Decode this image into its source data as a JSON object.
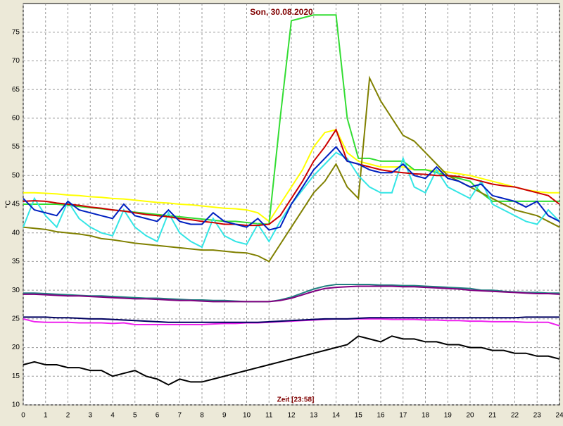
{
  "chart_data": {
    "type": "line",
    "title": "Son, 30.08.2020",
    "xlabel": "Zeit [23:58]",
    "ylabel": "°C",
    "x": [
      0,
      0.5,
      1,
      1.5,
      2,
      2.5,
      3,
      3.5,
      4,
      4.5,
      5,
      5.5,
      6,
      6.5,
      7,
      7.5,
      8,
      8.5,
      9,
      9.5,
      10,
      10.5,
      11,
      11.5,
      12,
      12.5,
      13,
      13.5,
      14,
      14.5,
      15,
      15.5,
      16,
      16.5,
      17,
      17.5,
      18,
      18.5,
      19,
      19.5,
      20,
      20.5,
      21,
      21.5,
      22,
      22.5,
      23,
      23.5,
      24
    ],
    "xlim": [
      0,
      24
    ],
    "xticks": [
      0,
      1,
      2,
      3,
      4,
      5,
      6,
      7,
      8,
      9,
      10,
      11,
      12,
      13,
      14,
      15,
      16,
      17,
      18,
      19,
      20,
      21,
      22,
      23,
      24
    ],
    "ylim": [
      10,
      80
    ],
    "yticks": [
      10,
      15,
      20,
      25,
      30,
      35,
      40,
      45,
      50,
      55,
      60,
      65,
      70,
      75
    ],
    "grid": true,
    "series": [
      {
        "color": "#ffff00",
        "values": [
          47,
          47,
          46.9,
          46.8,
          46.6,
          46.5,
          46.3,
          46.2,
          46,
          45.9,
          45.7,
          45.5,
          45.3,
          45.2,
          45,
          44.9,
          44.7,
          44.5,
          44.3,
          44.2,
          44,
          43.5,
          42,
          45,
          48,
          51,
          55,
          57.5,
          58,
          54,
          52.5,
          52,
          51.5,
          51.5,
          51.5,
          51,
          51,
          50.8,
          50.6,
          50.3,
          50,
          49.5,
          49,
          48.5,
          48,
          47.5,
          47.2,
          47,
          47
        ]
      },
      {
        "color": "#33dd33",
        "values": [
          45,
          45,
          45,
          45,
          44.8,
          44.6,
          44.4,
          44.2,
          44,
          43.8,
          43.6,
          43.4,
          43.2,
          43,
          42.8,
          42.6,
          42.4,
          42.2,
          42,
          42,
          41.8,
          41.6,
          41.5,
          60,
          77,
          77.5,
          78,
          78,
          78,
          60,
          53,
          53,
          52.5,
          52.5,
          52.5,
          51,
          51,
          50.5,
          50,
          49.5,
          49,
          47,
          45.5,
          45.5,
          45.5,
          45.5,
          45.5,
          45.5,
          45.5
        ]
      },
      {
        "color": "#808000",
        "values": [
          41,
          40.8,
          40.6,
          40.2,
          40,
          39.8,
          39.5,
          39,
          38.8,
          38.5,
          38.2,
          38,
          37.8,
          37.6,
          37.4,
          37.2,
          37,
          37,
          36.8,
          36.6,
          36.5,
          36,
          35,
          38,
          41,
          44,
          47,
          49,
          52,
          48,
          46,
          67,
          63,
          60,
          57,
          56,
          54,
          52,
          50,
          49,
          48,
          47,
          46,
          45,
          44,
          43.5,
          43,
          42,
          41
        ]
      },
      {
        "color": "#33e5e5",
        "values": [
          41,
          46,
          43,
          41,
          45.5,
          42.5,
          41,
          40,
          39.5,
          44,
          41,
          39.5,
          38.5,
          43.5,
          40,
          38.5,
          37.5,
          42.5,
          39.5,
          38.5,
          38,
          41.5,
          38.5,
          42,
          45,
          47.5,
          50,
          52,
          54,
          53,
          50,
          48,
          47,
          47,
          53,
          48,
          47,
          51,
          48,
          47,
          46,
          49,
          45,
          44,
          43,
          42,
          41.5,
          44,
          42
        ]
      },
      {
        "color": "#cc0000",
        "values": [
          45.5,
          45.6,
          45.5,
          45.2,
          45,
          44.8,
          44.5,
          44.3,
          44,
          43.8,
          43.5,
          43.2,
          43,
          42.8,
          42.5,
          42.3,
          42,
          41.8,
          41.5,
          41.5,
          41.3,
          41.3,
          41.5,
          43,
          46,
          49,
          52.5,
          55,
          58,
          52.5,
          52,
          51.5,
          51,
          50.7,
          50.5,
          50.3,
          50.2,
          50,
          50,
          49.8,
          49.5,
          49,
          48.5,
          48.2,
          48,
          47.5,
          47,
          46.5,
          45
        ]
      },
      {
        "color": "#0020c0",
        "values": [
          46,
          44,
          43.5,
          43,
          45.5,
          44,
          43.5,
          43,
          42.5,
          45,
          43,
          42.5,
          42,
          44,
          42,
          41.5,
          41.5,
          43.5,
          42,
          41.5,
          41,
          42.5,
          40.5,
          41,
          45,
          48,
          51,
          53,
          55,
          52.5,
          52,
          51,
          50.5,
          50.5,
          52,
          50,
          49.5,
          51.5,
          49.5,
          49,
          48,
          48.5,
          46.5,
          46,
          45.5,
          44.5,
          45.5,
          43,
          42
        ]
      },
      {
        "color": "#208080",
        "values": [
          29.5,
          29.5,
          29.4,
          29.3,
          29.2,
          29.1,
          29,
          29,
          28.9,
          28.8,
          28.7,
          28.6,
          28.6,
          28.5,
          28.4,
          28.3,
          28.3,
          28.2,
          28.2,
          28.1,
          28,
          28,
          28,
          28.3,
          28.8,
          29.5,
          30.2,
          30.7,
          31,
          31,
          31,
          31,
          30.9,
          30.9,
          30.8,
          30.8,
          30.7,
          30.6,
          30.5,
          30.4,
          30.3,
          30,
          30,
          29.8,
          29.7,
          29.6,
          29.6,
          29.5,
          29.5
        ]
      },
      {
        "color": "#800080",
        "values": [
          29.3,
          29.3,
          29.2,
          29.1,
          29,
          29,
          28.9,
          28.8,
          28.7,
          28.6,
          28.5,
          28.5,
          28.4,
          28.3,
          28.2,
          28.2,
          28.1,
          28,
          28,
          28,
          28,
          28,
          28,
          28.2,
          28.6,
          29.2,
          29.8,
          30.3,
          30.5,
          30.6,
          30.7,
          30.7,
          30.7,
          30.7,
          30.6,
          30.6,
          30.5,
          30.4,
          30.3,
          30.2,
          30,
          29.9,
          29.8,
          29.7,
          29.6,
          29.5,
          29.4,
          29.4,
          29.3
        ]
      },
      {
        "color": "#ee22ee",
        "values": [
          25,
          24.5,
          24.4,
          24.4,
          24.4,
          24.3,
          24.3,
          24.3,
          24.2,
          24.3,
          24,
          24,
          24,
          24,
          24,
          24,
          24,
          24.1,
          24.2,
          24.2,
          24.3,
          24.3,
          24.4,
          24.5,
          24.6,
          24.7,
          24.8,
          24.9,
          25,
          25,
          25,
          25,
          25,
          24.9,
          24.9,
          24.9,
          24.8,
          24.8,
          24.7,
          24.7,
          24.6,
          24.6,
          24.5,
          24.5,
          24.5,
          24.4,
          24.4,
          24.4,
          23.8
        ]
      },
      {
        "color": "#000060",
        "values": [
          25.3,
          25.3,
          25.3,
          25.2,
          25.2,
          25.1,
          25,
          25,
          24.9,
          24.8,
          24.7,
          24.6,
          24.5,
          24.4,
          24.4,
          24.4,
          24.4,
          24.4,
          24.4,
          24.4,
          24.4,
          24.4,
          24.5,
          24.6,
          24.7,
          24.8,
          24.9,
          25,
          25,
          25,
          25.1,
          25.2,
          25.2,
          25.2,
          25.2,
          25.2,
          25.2,
          25.2,
          25.2,
          25.2,
          25.2,
          25.2,
          25.2,
          25.2,
          25.2,
          25.3,
          25.3,
          25.3,
          25.3
        ]
      },
      {
        "color": "#000000",
        "values": [
          17,
          17.5,
          17,
          17,
          16.5,
          16.5,
          16,
          16,
          15,
          15.5,
          16,
          15,
          14.5,
          13.5,
          14.5,
          14,
          14,
          14.5,
          15,
          15.5,
          16,
          16.5,
          17,
          17.5,
          18,
          18.5,
          19,
          19.5,
          20,
          20.5,
          22,
          21.5,
          21,
          22,
          21.5,
          21.5,
          21,
          21,
          20.5,
          20.5,
          20,
          20,
          19.5,
          19.5,
          19,
          19,
          18.5,
          18.5,
          18
        ]
      }
    ]
  }
}
